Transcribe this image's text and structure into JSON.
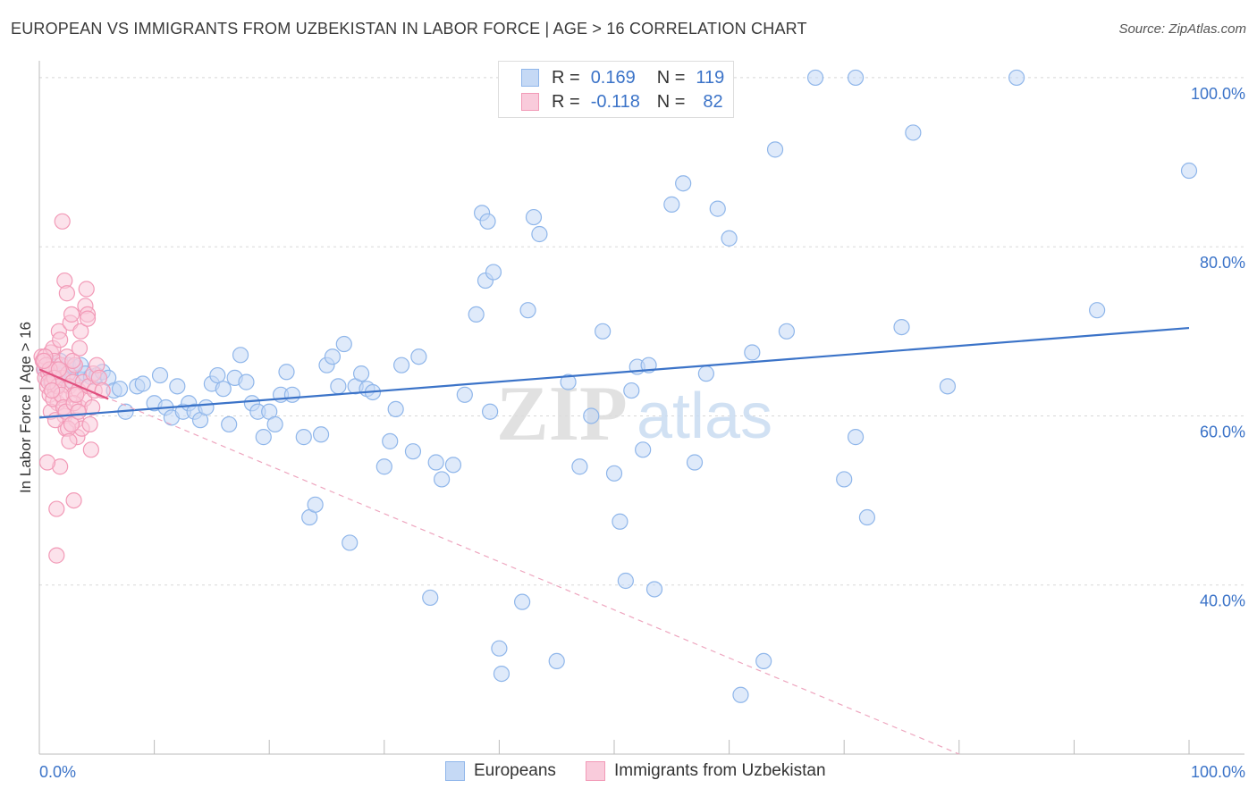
{
  "title": "EUROPEAN VS IMMIGRANTS FROM UZBEKISTAN IN LABOR FORCE | AGE > 16 CORRELATION CHART",
  "source": "Source: ZipAtlas.com",
  "watermark": {
    "zip": "ZIP",
    "atlas": "atlas"
  },
  "legend": {
    "r_label": "R =",
    "n_label": "N =",
    "rows": [
      {
        "r": "0.169",
        "n": "119",
        "color": "#8fb6ea",
        "fill": "#c5d9f5"
      },
      {
        "r": "-0.118",
        "n": "82",
        "color": "#f29ab7",
        "fill": "#f9cbdb"
      }
    ]
  },
  "bottom_legend": [
    {
      "label": "Europeans",
      "color": "#8fb6ea",
      "fill": "#c5d9f5"
    },
    {
      "label": "Immigrants from Uzbekistan",
      "color": "#f29ab7",
      "fill": "#f9cbdb"
    }
  ],
  "chart_data": {
    "type": "scatter",
    "title": "EUROPEAN VS IMMIGRANTS FROM UZBEKISTAN IN LABOR FORCE | AGE > 16 CORRELATION CHART",
    "xlabel": "",
    "ylabel": "In Labor Force | Age > 16",
    "xlim": [
      0,
      100
    ],
    "ylim": [
      20,
      102
    ],
    "x_tick_labels": [
      {
        "value": 0,
        "label": "0.0%"
      },
      {
        "value": 100,
        "label": "100.0%"
      }
    ],
    "y_tick_labels": [
      {
        "value": 40,
        "label": "40.0%"
      },
      {
        "value": 60,
        "label": "60.0%"
      },
      {
        "value": 80,
        "label": "80.0%"
      },
      {
        "value": 100,
        "label": "100.0%"
      }
    ],
    "grid": true,
    "series": [
      {
        "name": "Europeans",
        "color": "#3b73c8",
        "marker_fill": "#c5d9f5",
        "marker_stroke": "#8fb6ea",
        "trend": {
          "x": [
            0,
            100
          ],
          "y": [
            59.8,
            70.4
          ],
          "style": "solid"
        },
        "points": [
          [
            0.5,
            65.5
          ],
          [
            0.8,
            66.2
          ],
          [
            1.0,
            64.0
          ],
          [
            1.2,
            65.0
          ],
          [
            1.5,
            63.5
          ],
          [
            1.8,
            66.5
          ],
          [
            2.0,
            64.8
          ],
          [
            2.2,
            65.5
          ],
          [
            2.5,
            66.0
          ],
          [
            2.8,
            64.2
          ],
          [
            3.0,
            65.8
          ],
          [
            3.3,
            64.5
          ],
          [
            3.6,
            66.0
          ],
          [
            4.0,
            65.0
          ],
          [
            4.5,
            64.6
          ],
          [
            5.0,
            64.8
          ],
          [
            5.5,
            65.2
          ],
          [
            6.0,
            64.5
          ],
          [
            6.5,
            63.0
          ],
          [
            7.0,
            63.2
          ],
          [
            7.5,
            60.5
          ],
          [
            8.5,
            63.5
          ],
          [
            9.0,
            63.8
          ],
          [
            10.0,
            61.5
          ],
          [
            10.5,
            64.8
          ],
          [
            11.0,
            61.0
          ],
          [
            11.5,
            59.8
          ],
          [
            12.0,
            63.5
          ],
          [
            12.5,
            60.5
          ],
          [
            13.0,
            61.5
          ],
          [
            13.5,
            60.5
          ],
          [
            14.0,
            59.5
          ],
          [
            14.5,
            61.0
          ],
          [
            15.0,
            63.8
          ],
          [
            15.5,
            64.8
          ],
          [
            16.0,
            63.2
          ],
          [
            16.5,
            59.0
          ],
          [
            17.0,
            64.5
          ],
          [
            17.5,
            67.2
          ],
          [
            18.0,
            64.0
          ],
          [
            18.5,
            61.5
          ],
          [
            19.0,
            60.5
          ],
          [
            19.5,
            57.5
          ],
          [
            20.0,
            60.5
          ],
          [
            20.5,
            59.0
          ],
          [
            21.0,
            62.5
          ],
          [
            21.5,
            65.2
          ],
          [
            22.0,
            62.5
          ],
          [
            23.0,
            57.5
          ],
          [
            23.5,
            48.0
          ],
          [
            24.0,
            49.5
          ],
          [
            24.5,
            57.8
          ],
          [
            25.0,
            66.0
          ],
          [
            25.5,
            67.0
          ],
          [
            26.0,
            63.5
          ],
          [
            26.5,
            68.5
          ],
          [
            27.0,
            45.0
          ],
          [
            27.5,
            63.5
          ],
          [
            28.0,
            65.0
          ],
          [
            28.5,
            63.2
          ],
          [
            29.0,
            62.8
          ],
          [
            30.0,
            54.0
          ],
          [
            30.5,
            57.0
          ],
          [
            31.0,
            60.8
          ],
          [
            31.5,
            66.0
          ],
          [
            32.5,
            55.8
          ],
          [
            33.0,
            67.0
          ],
          [
            34.0,
            38.5
          ],
          [
            34.5,
            54.5
          ],
          [
            35.0,
            52.5
          ],
          [
            36.0,
            54.2
          ],
          [
            37.0,
            62.5
          ],
          [
            38.0,
            72.0
          ],
          [
            38.5,
            84.0
          ],
          [
            38.8,
            76.0
          ],
          [
            39.0,
            83.0
          ],
          [
            39.2,
            60.5
          ],
          [
            39.5,
            77.0
          ],
          [
            40.0,
            32.5
          ],
          [
            40.2,
            29.5
          ],
          [
            42.0,
            38.0
          ],
          [
            42.5,
            72.5
          ],
          [
            43.0,
            83.5
          ],
          [
            43.5,
            81.5
          ],
          [
            45.0,
            31.0
          ],
          [
            46.0,
            64.0
          ],
          [
            47.0,
            54.0
          ],
          [
            48.0,
            60.0
          ],
          [
            49.0,
            70.0
          ],
          [
            50.0,
            53.2
          ],
          [
            50.5,
            47.5
          ],
          [
            51.0,
            40.5
          ],
          [
            51.5,
            63.0
          ],
          [
            52.0,
            65.8
          ],
          [
            52.5,
            56.0
          ],
          [
            53.0,
            66.0
          ],
          [
            53.5,
            39.5
          ],
          [
            55.0,
            85.0
          ],
          [
            56.0,
            87.5
          ],
          [
            57.0,
            54.5
          ],
          [
            58.0,
            65.0
          ],
          [
            59.0,
            84.5
          ],
          [
            60.0,
            81.0
          ],
          [
            61.0,
            27.0
          ],
          [
            62.0,
            67.5
          ],
          [
            63.0,
            31.0
          ],
          [
            64.0,
            91.5
          ],
          [
            65.0,
            70.0
          ],
          [
            67.5,
            100.0
          ],
          [
            70.0,
            52.5
          ],
          [
            71.0,
            57.5
          ],
          [
            72.0,
            48.0
          ],
          [
            75.0,
            70.5
          ],
          [
            76.0,
            93.5
          ],
          [
            79.0,
            63.5
          ],
          [
            85.0,
            100.0
          ],
          [
            92.0,
            72.5
          ],
          [
            100.0,
            89.0
          ],
          [
            71.0,
            100.0
          ]
        ]
      },
      {
        "name": "Immigrants from Uzbekistan",
        "color": "#e0507f",
        "marker_fill": "#f9cbdb",
        "marker_stroke": "#f29ab7",
        "trend_solid": {
          "x": [
            0,
            6
          ],
          "y": [
            65.5,
            62.0
          ],
          "style": "solid"
        },
        "trend_dashed": {
          "x": [
            0,
            80
          ],
          "y": [
            65.5,
            20.0
          ],
          "style": "dashed"
        },
        "points": [
          [
            0.2,
            67.0
          ],
          [
            0.3,
            66.5
          ],
          [
            0.4,
            65.5
          ],
          [
            0.5,
            64.5
          ],
          [
            0.6,
            66.0
          ],
          [
            0.7,
            63.5
          ],
          [
            0.8,
            65.0
          ],
          [
            0.9,
            62.5
          ],
          [
            1.0,
            67.5
          ],
          [
            1.1,
            64.0
          ],
          [
            1.2,
            68.0
          ],
          [
            1.3,
            66.5
          ],
          [
            1.4,
            63.0
          ],
          [
            1.5,
            65.5
          ],
          [
            1.6,
            61.5
          ],
          [
            1.7,
            70.0
          ],
          [
            1.8,
            69.0
          ],
          [
            1.9,
            66.0
          ],
          [
            2.0,
            64.5
          ],
          [
            2.1,
            62.0
          ],
          [
            2.2,
            60.0
          ],
          [
            2.3,
            58.5
          ],
          [
            2.4,
            67.0
          ],
          [
            2.5,
            65.0
          ],
          [
            2.6,
            63.5
          ],
          [
            2.7,
            71.0
          ],
          [
            2.8,
            72.0
          ],
          [
            2.9,
            64.0
          ],
          [
            3.0,
            62.5
          ],
          [
            3.1,
            66.0
          ],
          [
            3.2,
            59.5
          ],
          [
            3.3,
            57.5
          ],
          [
            3.4,
            63.0
          ],
          [
            3.5,
            61.0
          ],
          [
            3.6,
            70.0
          ],
          [
            3.7,
            58.5
          ],
          [
            3.8,
            64.0
          ],
          [
            3.9,
            62.0
          ],
          [
            4.0,
            73.0
          ],
          [
            4.1,
            75.0
          ],
          [
            4.2,
            72.0
          ],
          [
            4.3,
            63.5
          ],
          [
            4.4,
            59.0
          ],
          [
            4.5,
            56.0
          ],
          [
            4.6,
            61.0
          ],
          [
            4.7,
            65.0
          ],
          [
            4.8,
            63.0
          ],
          [
            5.0,
            66.0
          ],
          [
            5.2,
            64.5
          ],
          [
            5.5,
            63.0
          ],
          [
            2.0,
            83.0
          ],
          [
            2.2,
            76.0
          ],
          [
            2.4,
            74.5
          ],
          [
            3.0,
            50.0
          ],
          [
            1.5,
            49.0
          ],
          [
            1.5,
            43.5
          ],
          [
            1.8,
            54.0
          ],
          [
            0.7,
            54.5
          ],
          [
            1.0,
            60.5
          ],
          [
            1.2,
            62.0
          ],
          [
            1.4,
            59.5
          ],
          [
            0.5,
            67.0
          ],
          [
            0.6,
            66.0
          ],
          [
            0.9,
            65.5
          ],
          [
            1.3,
            64.5
          ],
          [
            1.6,
            63.5
          ],
          [
            1.9,
            62.5
          ],
          [
            2.1,
            61.0
          ],
          [
            2.3,
            60.5
          ],
          [
            2.5,
            58.5
          ],
          [
            2.6,
            57.0
          ],
          [
            2.8,
            59.0
          ],
          [
            3.0,
            61.5
          ],
          [
            3.2,
            62.5
          ],
          [
            3.4,
            60.5
          ],
          [
            0.4,
            66.5
          ],
          [
            0.8,
            64.0
          ],
          [
            1.1,
            63.0
          ],
          [
            1.7,
            65.5
          ],
          [
            2.9,
            66.5
          ],
          [
            3.5,
            68.0
          ],
          [
            4.2,
            71.5
          ]
        ]
      }
    ]
  }
}
